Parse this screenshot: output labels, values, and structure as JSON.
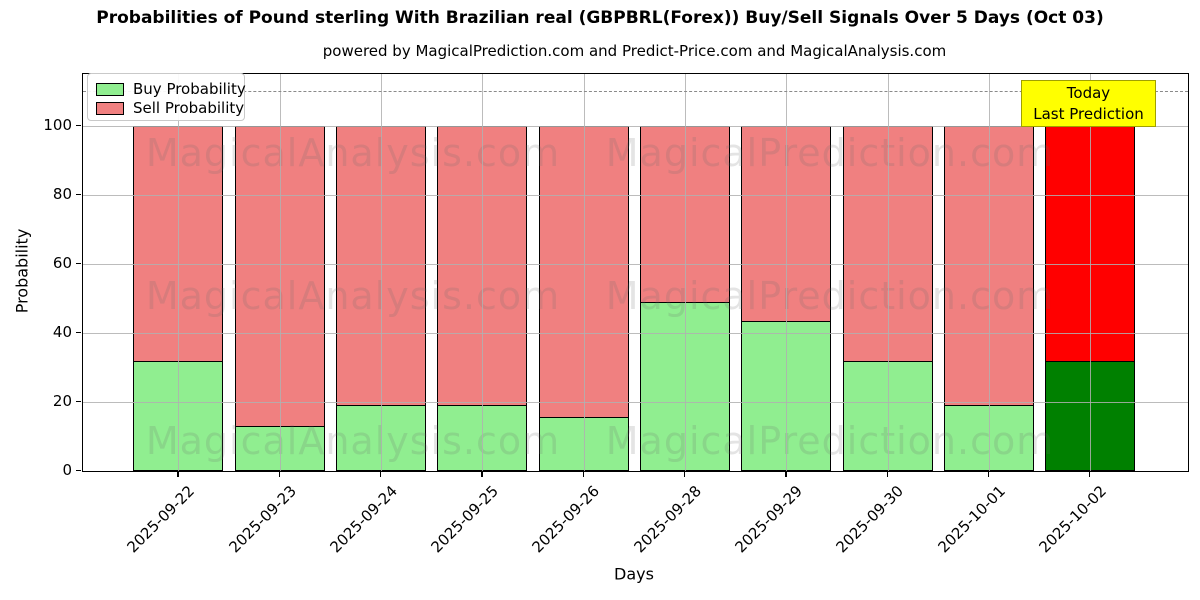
{
  "watermarks": {
    "left": "MagicalAnalysis.com",
    "right": "MagicalPrediction.com"
  },
  "chart_data": {
    "type": "bar",
    "stacked": true,
    "title": "Probabilities of Pound sterling With Brazilian real (GBPBRL(Forex)) Buy/Sell Signals Over 5 Days (Oct 03)",
    "subtitle": "powered by MagicalPrediction.com and Predict-Price.com and MagicalAnalysis.com",
    "xlabel": "Days",
    "ylabel": "Probability",
    "categories": [
      "2025-09-22",
      "2025-09-23",
      "2025-09-24",
      "2025-09-25",
      "2025-09-26",
      "2025-09-28",
      "2025-09-29",
      "2025-09-30",
      "2025-10-01",
      "2025-10-02"
    ],
    "series": [
      {
        "name": "Buy Probability",
        "color": "#90EE90",
        "today_color": "#008000",
        "values": [
          32,
          13,
          19,
          19,
          15.5,
          49,
          43.5,
          32,
          19,
          32
        ]
      },
      {
        "name": "Sell Probability",
        "color": "#F08080",
        "today_color": "#FF0000",
        "values": [
          68,
          87,
          81,
          81,
          84.5,
          51,
          56.5,
          68,
          81,
          68
        ]
      }
    ],
    "today_index": 9,
    "ylim": [
      0,
      115
    ],
    "yticks": [
      0,
      20,
      40,
      60,
      80,
      100
    ],
    "dashed_line_y": 110,
    "grid": true,
    "legend_position": "upper left",
    "today_annotation": {
      "lines": [
        "Today",
        "Last Prediction"
      ],
      "bg": "#FFFF00",
      "border": "#A0A000"
    }
  }
}
